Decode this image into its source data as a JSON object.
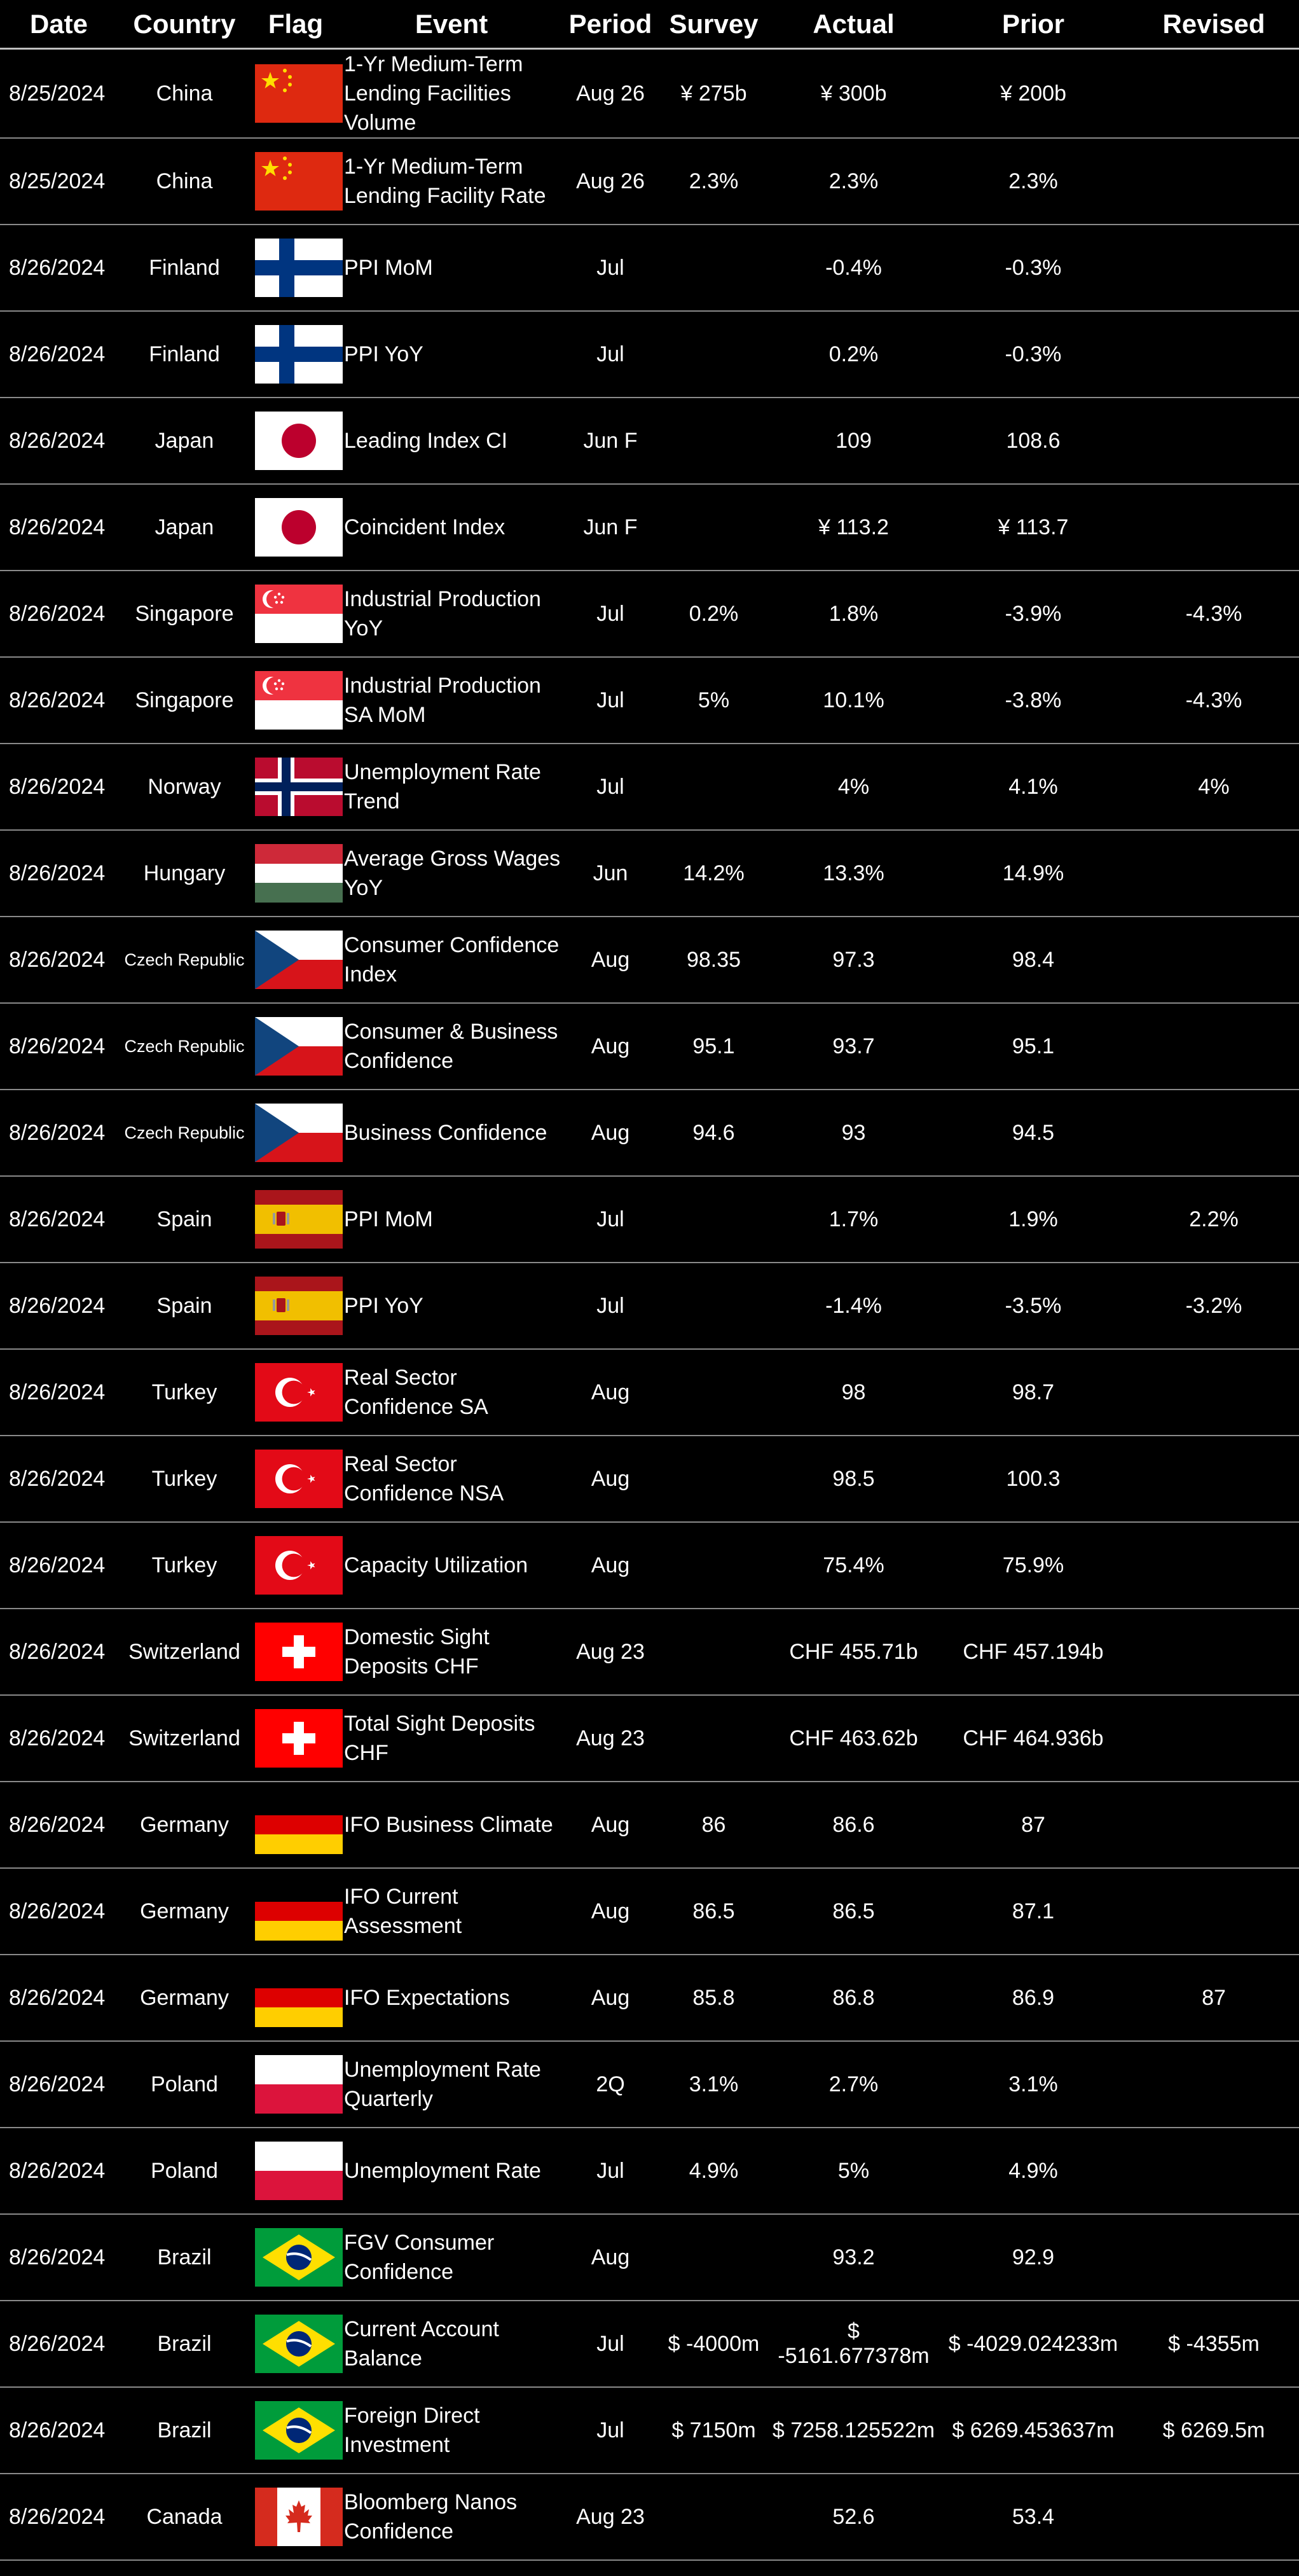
{
  "headers": {
    "date": "Date",
    "country": "Country",
    "flag": "Flag",
    "event": "Event",
    "period": "Period",
    "survey": "Survey",
    "actual": "Actual",
    "prior": "Prior",
    "revised": "Revised"
  },
  "rows": [
    {
      "date": "8/25/2024",
      "country": "China",
      "flag": "china",
      "event": "1-Yr Medium-Term Lending Facilities Volume",
      "period": "Aug 26",
      "survey": "¥ 275b",
      "actual": "¥ 300b",
      "prior": "¥ 200b",
      "revised": ""
    },
    {
      "date": "8/25/2024",
      "country": "China",
      "flag": "china",
      "event": "1-Yr Medium-Term Lending Facility Rate",
      "period": "Aug 26",
      "survey": "2.3%",
      "actual": "2.3%",
      "prior": "2.3%",
      "revised": ""
    },
    {
      "date": "8/26/2024",
      "country": "Finland",
      "flag": "finland",
      "event": "PPI MoM",
      "period": "Jul",
      "survey": "",
      "actual": "-0.4%",
      "prior": "-0.3%",
      "revised": ""
    },
    {
      "date": "8/26/2024",
      "country": "Finland",
      "flag": "finland",
      "event": "PPI YoY",
      "period": "Jul",
      "survey": "",
      "actual": "0.2%",
      "prior": "-0.3%",
      "revised": ""
    },
    {
      "date": "8/26/2024",
      "country": "Japan",
      "flag": "japan",
      "event": "Leading Index CI",
      "period": "Jun F",
      "survey": "",
      "actual": "109",
      "prior": "108.6",
      "revised": ""
    },
    {
      "date": "8/26/2024",
      "country": "Japan",
      "flag": "japan",
      "event": "Coincident Index",
      "period": "Jun F",
      "survey": "",
      "actual": "¥ 113.2",
      "prior": "¥ 113.7",
      "revised": ""
    },
    {
      "date": "8/26/2024",
      "country": "Singapore",
      "flag": "singapore",
      "event": "Industrial Production YoY",
      "period": "Jul",
      "survey": "0.2%",
      "actual": "1.8%",
      "prior": "-3.9%",
      "revised": "-4.3%"
    },
    {
      "date": "8/26/2024",
      "country": "Singapore",
      "flag": "singapore",
      "event": "Industrial Production SA MoM",
      "period": "Jul",
      "survey": "5%",
      "actual": "10.1%",
      "prior": "-3.8%",
      "revised": "-4.3%"
    },
    {
      "date": "8/26/2024",
      "country": "Norway",
      "flag": "norway",
      "event": "Unemployment Rate Trend",
      "period": "Jul",
      "survey": "",
      "actual": "4%",
      "prior": "4.1%",
      "revised": "4%"
    },
    {
      "date": "8/26/2024",
      "country": "Hungary",
      "flag": "hungary",
      "event": "Average Gross Wages YoY",
      "period": "Jun",
      "survey": "14.2%",
      "actual": "13.3%",
      "prior": "14.9%",
      "revised": ""
    },
    {
      "date": "8/26/2024",
      "country": "Czech Republic",
      "flag": "czech",
      "event": "Consumer Confidence Index",
      "period": "Aug",
      "survey": "98.35",
      "actual": "97.3",
      "prior": "98.4",
      "revised": ""
    },
    {
      "date": "8/26/2024",
      "country": "Czech Republic",
      "flag": "czech",
      "event": "Consumer & Business Confidence",
      "period": "Aug",
      "survey": "95.1",
      "actual": "93.7",
      "prior": "95.1",
      "revised": ""
    },
    {
      "date": "8/26/2024",
      "country": "Czech Republic",
      "flag": "czech",
      "event": "Business Confidence",
      "period": "Aug",
      "survey": "94.6",
      "actual": "93",
      "prior": "94.5",
      "revised": ""
    },
    {
      "date": "8/26/2024",
      "country": "Spain",
      "flag": "spain",
      "event": "PPI MoM",
      "period": "Jul",
      "survey": "",
      "actual": "1.7%",
      "prior": "1.9%",
      "revised": "2.2%"
    },
    {
      "date": "8/26/2024",
      "country": "Spain",
      "flag": "spain",
      "event": "PPI YoY",
      "period": "Jul",
      "survey": "",
      "actual": "-1.4%",
      "prior": "-3.5%",
      "revised": "-3.2%"
    },
    {
      "date": "8/26/2024",
      "country": "Turkey",
      "flag": "turkey",
      "event": "Real Sector Confidence SA",
      "period": "Aug",
      "survey": "",
      "actual": "98",
      "prior": "98.7",
      "revised": ""
    },
    {
      "date": "8/26/2024",
      "country": "Turkey",
      "flag": "turkey",
      "event": "Real Sector Confidence NSA",
      "period": "Aug",
      "survey": "",
      "actual": "98.5",
      "prior": "100.3",
      "revised": ""
    },
    {
      "date": "8/26/2024",
      "country": "Turkey",
      "flag": "turkey",
      "event": "Capacity Utilization",
      "period": "Aug",
      "survey": "",
      "actual": "75.4%",
      "prior": "75.9%",
      "revised": ""
    },
    {
      "date": "8/26/2024",
      "country": "Switzerland",
      "flag": "switzerland",
      "event": "Domestic Sight Deposits CHF",
      "period": "Aug 23",
      "survey": "",
      "actual": "CHF 455.71b",
      "prior": "CHF 457.194b",
      "revised": ""
    },
    {
      "date": "8/26/2024",
      "country": "Switzerland",
      "flag": "switzerland",
      "event": "Total Sight Deposits CHF",
      "period": "Aug 23",
      "survey": "",
      "actual": "CHF 463.62b",
      "prior": "CHF 464.936b",
      "revised": ""
    },
    {
      "date": "8/26/2024",
      "country": "Germany",
      "flag": "germany",
      "event": "IFO Business Climate",
      "period": "Aug",
      "survey": "86",
      "actual": "86.6",
      "prior": "87",
      "revised": ""
    },
    {
      "date": "8/26/2024",
      "country": "Germany",
      "flag": "germany",
      "event": "IFO Current Assessment",
      "period": "Aug",
      "survey": "86.5",
      "actual": "86.5",
      "prior": "87.1",
      "revised": ""
    },
    {
      "date": "8/26/2024",
      "country": "Germany",
      "flag": "germany",
      "event": "IFO Expectations",
      "period": "Aug",
      "survey": "85.8",
      "actual": "86.8",
      "prior": "86.9",
      "revised": "87"
    },
    {
      "date": "8/26/2024",
      "country": "Poland",
      "flag": "poland",
      "event": "Unemployment Rate Quarterly",
      "period": "2Q",
      "survey": "3.1%",
      "actual": "2.7%",
      "prior": "3.1%",
      "revised": ""
    },
    {
      "date": "8/26/2024",
      "country": "Poland",
      "flag": "poland",
      "event": "Unemployment Rate",
      "period": "Jul",
      "survey": "4.9%",
      "actual": "5%",
      "prior": "4.9%",
      "revised": ""
    },
    {
      "date": "8/26/2024",
      "country": "Brazil",
      "flag": "brazil",
      "event": "FGV Consumer Confidence",
      "period": "Aug",
      "survey": "",
      "actual": "93.2",
      "prior": "92.9",
      "revised": ""
    },
    {
      "date": "8/26/2024",
      "country": "Brazil",
      "flag": "brazil",
      "event": "Current Account Balance",
      "period": "Jul",
      "survey": "$ -4000m",
      "actual": "$ -5161.677378m",
      "prior": "$ -4029.024233m",
      "revised": "$ -4355m"
    },
    {
      "date": "8/26/2024",
      "country": "Brazil",
      "flag": "brazil",
      "event": "Foreign Direct Investment",
      "period": "Jul",
      "survey": "$ 7150m",
      "actual": "$ 7258.125522m",
      "prior": "$ 6269.453637m",
      "revised": "$ 6269.5m"
    },
    {
      "date": "8/26/2024",
      "country": "Canada",
      "flag": "canada",
      "event": "Bloomberg Nanos Confidence",
      "period": "Aug 23",
      "survey": "",
      "actual": "52.6",
      "prior": "53.4",
      "revised": ""
    }
  ]
}
